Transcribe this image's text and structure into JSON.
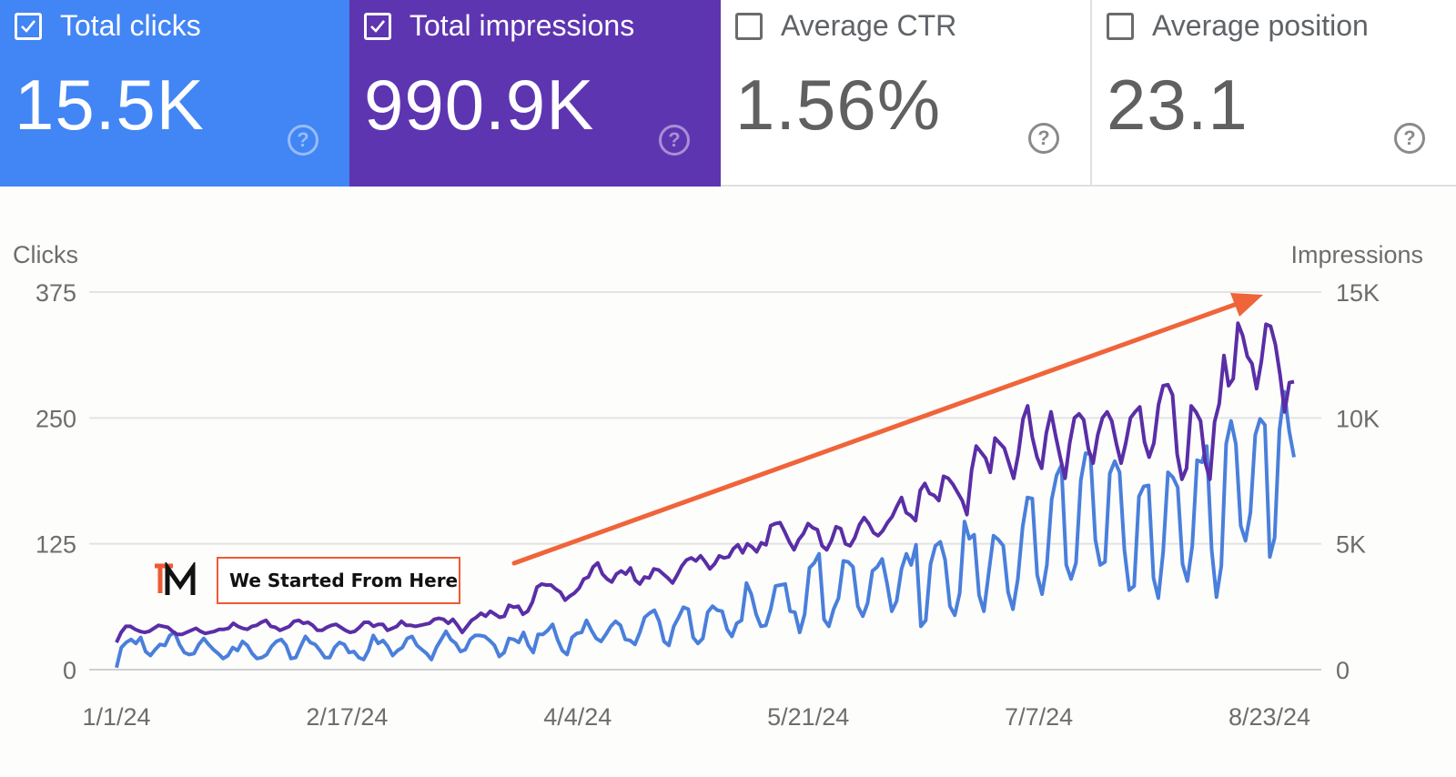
{
  "metrics": [
    {
      "label": "Total clicks",
      "value": "15.5K",
      "checked": true
    },
    {
      "label": "Total impressions",
      "value": "990.9K",
      "checked": true
    },
    {
      "label": "Average CTR",
      "value": "1.56%",
      "checked": false
    },
    {
      "label": "Average position",
      "value": "23.1",
      "checked": false
    }
  ],
  "help_glyph": "?",
  "annotation": {
    "text": "We Started From Here",
    "logo_text": "TM"
  },
  "colors": {
    "clicks": "#4a7fdb",
    "impressions": "#5a2ea6",
    "arrow": "#f0643a",
    "grid": "#e3e3e3"
  },
  "chart_data": {
    "type": "line",
    "left_axis": {
      "label": "Clicks",
      "ticks": [
        "0",
        "125",
        "250",
        "375"
      ],
      "range": [
        0,
        375
      ]
    },
    "right_axis": {
      "label": "Impressions",
      "ticks": [
        "0",
        "5K",
        "10K",
        "15K"
      ],
      "range": [
        0,
        15000
      ]
    },
    "x_ticks": [
      "1/1/24",
      "2/17/24",
      "4/4/24",
      "5/21/24",
      "7/7/24",
      "8/23/24"
    ],
    "start_date": "1/1/24",
    "end_date": "8/27/24",
    "days": 240,
    "series": [
      {
        "name": "Clicks",
        "axis": "left",
        "values": [
          2,
          22,
          27,
          30,
          26,
          32,
          18,
          14,
          20,
          25,
          24,
          34,
          37,
          25,
          17,
          15,
          16,
          25,
          31,
          25,
          20,
          16,
          11,
          14,
          22,
          19,
          28,
          24,
          16,
          11,
          12,
          15,
          23,
          28,
          30,
          24,
          11,
          12,
          23,
          33,
          27,
          25,
          19,
          12,
          12,
          22,
          27,
          25,
          17,
          18,
          12,
          10,
          19,
          34,
          26,
          29,
          23,
          14,
          19,
          22,
          31,
          33,
          24,
          20,
          16,
          10,
          22,
          30,
          38,
          30,
          26,
          18,
          20,
          30,
          34,
          34,
          33,
          29,
          24,
          13,
          17,
          31,
          30,
          27,
          37,
          24,
          17,
          35,
          35,
          39,
          45,
          30,
          19,
          15,
          32,
          36,
          37,
          49,
          39,
          31,
          28,
          35,
          43,
          48,
          44,
          30,
          29,
          25,
          37,
          52,
          56,
          59,
          48,
          28,
          24,
          43,
          52,
          62,
          60,
          32,
          26,
          31,
          57,
          63,
          59,
          58,
          40,
          33,
          46,
          49,
          86,
          75,
          55,
          43,
          44,
          60,
          83,
          84,
          85,
          58,
          57,
          37,
          55,
          101,
          106,
          115,
          50,
          43,
          60,
          71,
          108,
          107,
          102,
          63,
          53,
          66,
          98,
          102,
          110,
          86,
          58,
          68,
          100,
          115,
          104,
          124,
          43,
          49,
          105,
          123,
          127,
          109,
          63,
          54,
          76,
          147,
          130,
          134,
          74,
          58,
          96,
          133,
          129,
          123,
          77,
          60,
          90,
          142,
          171,
          170,
          94,
          75,
          104,
          169,
          193,
          203,
          104,
          90,
          106,
          188,
          215,
          214,
          129,
          104,
          107,
          195,
          207,
          196,
          119,
          79,
          83,
          172,
          182,
          183,
          91,
          71,
          117,
          196,
          191,
          181,
          105,
          88,
          123,
          208,
          206,
          222,
          119,
          72,
          103,
          224,
          247,
          224,
          143,
          128,
          156,
          233,
          249,
          243,
          112,
          131,
          238,
          276,
          237,
          211
        ]
      },
      {
        "name": "Impressions",
        "axis": "left",
        "values": [
          27,
          37,
          43,
          43,
          40,
          38,
          37,
          38,
          41,
          44,
          43,
          42,
          38,
          35,
          35,
          37,
          39,
          41,
          38,
          36,
          37,
          38,
          40,
          40,
          41,
          46,
          43,
          41,
          40,
          43,
          44,
          47,
          49,
          43,
          42,
          39,
          41,
          43,
          48,
          49,
          46,
          47,
          44,
          39,
          39,
          42,
          44,
          45,
          42,
          39,
          37,
          38,
          42,
          47,
          47,
          43,
          45,
          45,
          39,
          41,
          43,
          48,
          44,
          44,
          43,
          44,
          45,
          46,
          50,
          51,
          50,
          46,
          50,
          44,
          37,
          43,
          49,
          52,
          56,
          53,
          58,
          55,
          52,
          53,
          64,
          62,
          63,
          55,
          58,
          67,
          82,
          85,
          84,
          84,
          80,
          77,
          69,
          73,
          76,
          81,
          90,
          92,
          102,
          106,
          95,
          90,
          87,
          95,
          98,
          95,
          101,
          89,
          85,
          92,
          91,
          100,
          99,
          95,
          91,
          86,
          94,
          103,
          109,
          111,
          108,
          113,
          107,
          100,
          105,
          113,
          111,
          112,
          120,
          124,
          116,
          125,
          122,
          117,
          126,
          124,
          143,
          145,
          146,
          137,
          127,
          119,
          129,
          135,
          145,
          141,
          139,
          123,
          119,
          128,
          142,
          140,
          125,
          123,
          131,
          144,
          151,
          145,
          136,
          133,
          138,
          146,
          152,
          162,
          171,
          156,
          153,
          148,
          178,
          185,
          175,
          173,
          168,
          192,
          190,
          184,
          176,
          168,
          154,
          198,
          222,
          216,
          210,
          196,
          230,
          225,
          220,
          205,
          190,
          214,
          249,
          262,
          231,
          211,
          200,
          235,
          256,
          232,
          210,
          190,
          225,
          250,
          254,
          248,
          219,
          205,
          233,
          250,
          256,
          247,
          224,
          205,
          225,
          250,
          256,
          261,
          226,
          211,
          225,
          263,
          282,
          283,
          273,
          214,
          189,
          200,
          262,
          256,
          247,
          206,
          189,
          246,
          264,
          312,
          282,
          289,
          344,
          332,
          311,
          304,
          279,
          306,
          343,
          341,
          323,
          293,
          256,
          285,
          286
        ]
      }
    ]
  }
}
